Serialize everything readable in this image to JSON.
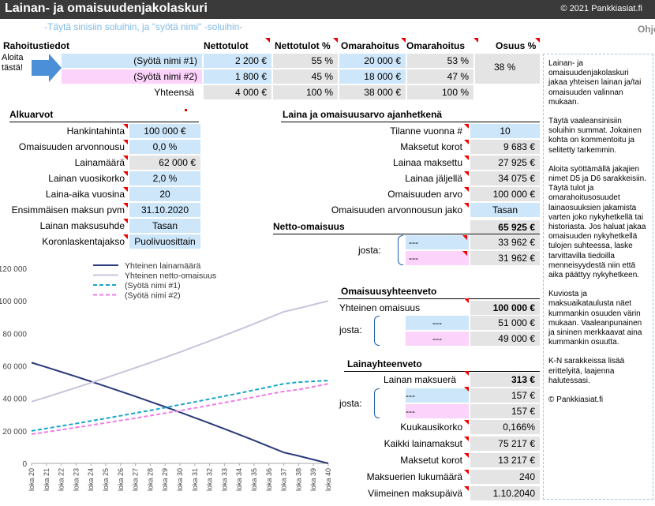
{
  "title": "Lainan- ja omaisuudenjakolaskuri",
  "copyright": "© 2021 Pankkiasiat.fi",
  "hint": "-Täytä sinisiin soluihin, ja \"syötä nimi\" -soluihin-",
  "side_tab": "Ohje",
  "rahoitus": {
    "header": "Rahoitustiedot",
    "cols": [
      "Nettotulot",
      "Nettotulot %",
      "Omarahoitus",
      "Omarahoitus",
      "Osuus %"
    ],
    "start_label": "Aloita\ntästä!",
    "rows": [
      {
        "name": "(Syötä nimi #1)",
        "netto": "2 200 €",
        "netto_pct": "55 %",
        "oma": "20 000 €",
        "oma_pct": "53 %"
      },
      {
        "name": "(Syötä nimi #2)",
        "netto": "1 800 €",
        "netto_pct": "45 %",
        "oma": "18 000 €",
        "oma_pct": "47 %"
      }
    ],
    "osuus": "38 %",
    "total_label": "Yhteensä",
    "total": {
      "netto": "4 000 €",
      "netto_pct": "100 %",
      "oma": "38 000 €",
      "oma_pct": "100 %"
    }
  },
  "alkuarvot": {
    "header": "Alkuarvot",
    "rows": [
      {
        "label": "Hankintahinta",
        "value": "100 000 €"
      },
      {
        "label": "Omaisuuden arvonnousu",
        "value": "0,0 %"
      },
      {
        "label": "Lainamäärä",
        "value": "62 000 €"
      },
      {
        "label": "Lainan vuosikorko",
        "value": "2,0 %"
      },
      {
        "label": "Laina-aika vuosina",
        "value": "20"
      },
      {
        "label": "Ensimmäisen maksun pvm",
        "value": "31.10.2020"
      },
      {
        "label": "Lainan maksusuhde",
        "value": "Tasan"
      },
      {
        "label": "Koronlaskentajakso",
        "value": "Puolivuosittain"
      }
    ]
  },
  "ajanhetki": {
    "header": "Laina ja omaisuusarvo ajanhetkenä",
    "rows": [
      {
        "label": "Tilanne vuonna #",
        "value": "10"
      },
      {
        "label": "Maksetut korot",
        "value": "9 683 €"
      },
      {
        "label": "Lainaa maksettu",
        "value": "27 925 €"
      },
      {
        "label": "Lainaa jäljellä",
        "value": "34 075 €"
      },
      {
        "label": "Omaisuuden arvo",
        "value": "100 000 €"
      },
      {
        "label": "Omaisuuden arvonnousun jako",
        "value": "Tasan"
      }
    ],
    "netto_label": "Netto-omaisuus",
    "netto_value": "65 925 €",
    "josta": "josta:",
    "josta_rows": [
      {
        "name": "---",
        "value": "33 962 €"
      },
      {
        "name": "---",
        "value": "31 962 €"
      }
    ]
  },
  "omaisuus": {
    "header": "Omaisuusyhteenveto",
    "total_label": "Yhteinen omaisuus",
    "total": "100 000 €",
    "josta": "josta:",
    "rows": [
      {
        "name": "---",
        "value": "51 000 €"
      },
      {
        "name": "---",
        "value": "49 000 €"
      }
    ]
  },
  "lainayhteenveto": {
    "header": "Lainayhteenveto",
    "maksuera_label": "Lainan maksuerä",
    "maksuera": "313 €",
    "josta": "josta:",
    "josta_rows": [
      {
        "name": "---",
        "value": "157 €"
      },
      {
        "name": "---",
        "value": "157 €"
      }
    ],
    "rows": [
      {
        "label": "Kuukausikorko",
        "value": "0,166%"
      },
      {
        "label": "Kaikki lainamaksut",
        "value": "75 217 €"
      },
      {
        "label": "Maksetut korot",
        "value": "13 217 €"
      },
      {
        "label": "Maksuerien lukumäärä",
        "value": "240"
      },
      {
        "label": "Viimeinen maksupäivä",
        "value": "1.10.2040"
      }
    ]
  },
  "sidebox": [
    "Lainan- ja omaisuudenjakolaskuri jakaa yhteisen lainan ja/tai omaisuuden valinnan mukaan.",
    "Täytä vaaleansinisiin soluihin summat. Jokainen kohta on kommentoitu ja selitetty tarkemmin.",
    "Aloita syöttämällä jakajien nimet D5 ja D6 sarakkeisiin. Täytä tulot ja omarahoitusosuudet lainaosuuksien jakamista varten joko nykyhetkellä tai historiasta. Jos haluat jakaa omaisuuden nykyhetkellä tulojen suhteessa, laske tarvittavilla tiedoilla menneisyydestä niin että aika päättyy nykyhetkeen.",
    "Kuviosta ja maksuaikataulusta näet kummankin osuuden värin mukaan. Vaaleanpunainen ja sininen merkkaavat aina kummankin osuutta.",
    "K-N sarakkeissa lisää erittelyitä, laajenna halutessasi.",
    "© Pankkiasiat.fi"
  ],
  "colors": {
    "blue_cell": "#cde6fa",
    "pink_cell": "#fcd3fb",
    "gray_cell": "#e4e4e4",
    "title_bg": "#3a3a3a",
    "loan_line": "#2b3a7a",
    "netto_line": "#c9c3dc",
    "series1": "#19a7c9",
    "series2": "#f07ce6",
    "red_marker": "#e00000"
  },
  "chart_data": {
    "type": "line",
    "legend": [
      "Yhteinen lainamäärä",
      "Yhteinen netto-omaisuus",
      "(Syötä nimi #1)",
      "(Syötä nimi #2)"
    ],
    "yticks": [
      "120 000",
      "100 000",
      "80 000",
      "60 000",
      "40 000",
      "20 000",
      "0"
    ],
    "ylim": [
      0,
      120000
    ],
    "x": [
      "loka 20",
      "loka 21",
      "loka 22",
      "loka 23",
      "loka 24",
      "loka 25",
      "loka 26",
      "loka 27",
      "loka 28",
      "loka 29",
      "loka 30",
      "loka 31",
      "loka 32",
      "loka 33",
      "loka 34",
      "loka 35",
      "loka 36",
      "loka 37",
      "loka 38",
      "loka 39",
      "loka 40"
    ],
    "series": [
      {
        "name": "Yhteinen lainamäärä",
        "values": [
          62000,
          59200,
          56300,
          53400,
          50400,
          47400,
          44300,
          41200,
          38000,
          34800,
          31500,
          28100,
          24700,
          21200,
          17700,
          14100,
          10400,
          6700,
          4600,
          2300,
          0
        ]
      },
      {
        "name": "Yhteinen netto-omaisuus",
        "values": [
          38000,
          40800,
          43700,
          46600,
          49600,
          52600,
          55700,
          58800,
          62000,
          65200,
          68500,
          71900,
          75300,
          78800,
          82300,
          85900,
          89600,
          93300,
          95400,
          97700,
          100000
        ]
      },
      {
        "name": "(Syötä nimi #1)",
        "values": [
          20000,
          21500,
          23000,
          24500,
          26100,
          27700,
          29300,
          31000,
          32600,
          34300,
          36100,
          37800,
          39600,
          41400,
          43200,
          45100,
          47000,
          49000,
          50000,
          50500,
          51000
        ]
      },
      {
        "name": "(Syötä nimi #2)",
        "values": [
          18000,
          19300,
          20700,
          22100,
          23500,
          24900,
          26400,
          27800,
          29400,
          30900,
          32400,
          34100,
          35700,
          37400,
          39100,
          40800,
          42600,
          44300,
          45400,
          47200,
          49000
        ]
      }
    ]
  }
}
